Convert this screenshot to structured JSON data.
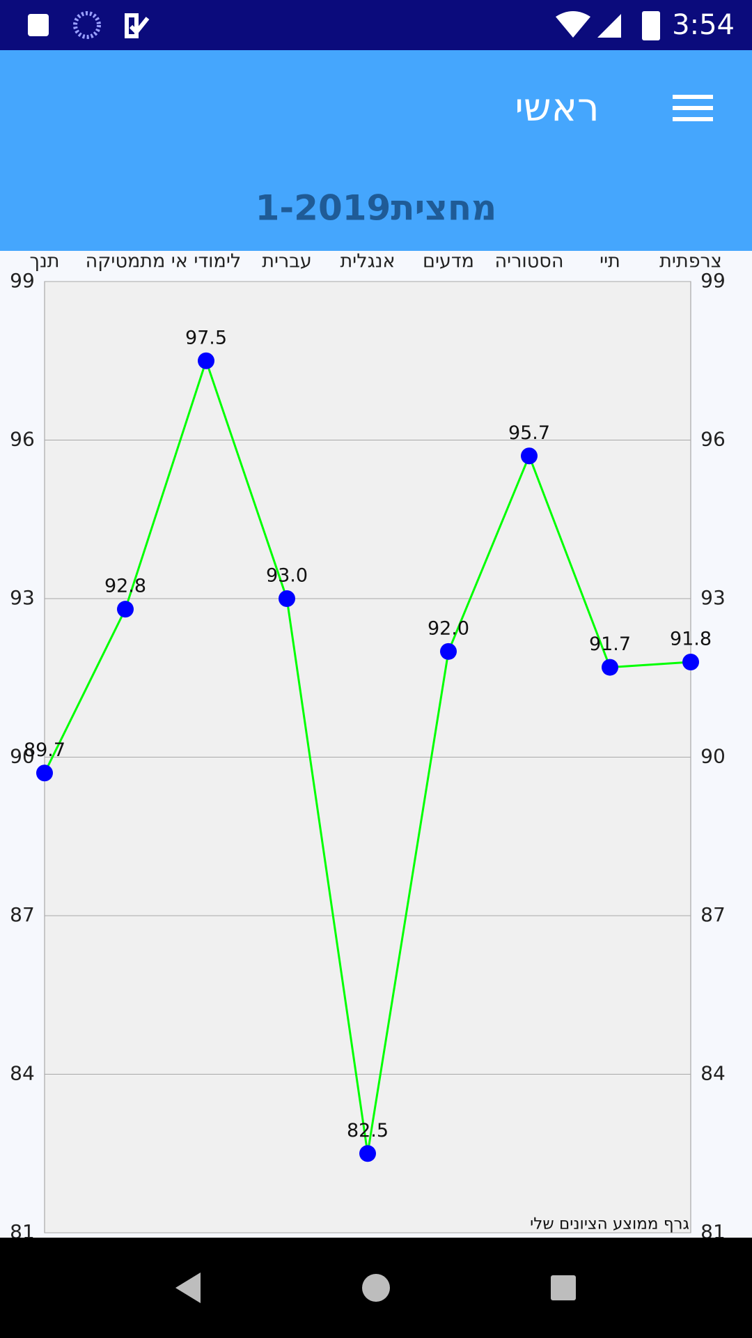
{
  "status_bar": {
    "time": "3:54"
  },
  "app_bar": {
    "title": "ראשי"
  },
  "header": {
    "title": "מחצית1-2019"
  },
  "chart_data": {
    "type": "line",
    "categories": [
      "תנך",
      "מתמטיקה",
      "לימודי אי",
      "עברית",
      "אנגלית",
      "מדעים",
      "הסטוריה",
      "תיי",
      "צרפתית"
    ],
    "series": [
      {
        "color": "#00ff00",
        "marker_color": "#0000ff",
        "values": [
          89.7,
          92.8,
          97.5,
          93.0,
          82.5,
          92.0,
          95.7,
          91.7,
          91.8
        ],
        "value_labels": [
          "89.7",
          "92.8",
          "97.5",
          "93.0",
          "82.5",
          "92.0",
          "95.7",
          "91.7",
          "91.8"
        ]
      }
    ],
    "ylim": [
      81,
      99
    ],
    "yticks": [
      81,
      84,
      87,
      90,
      93,
      96,
      99
    ],
    "grid": true,
    "description": "גרף ממוצע הציונים שלי"
  }
}
